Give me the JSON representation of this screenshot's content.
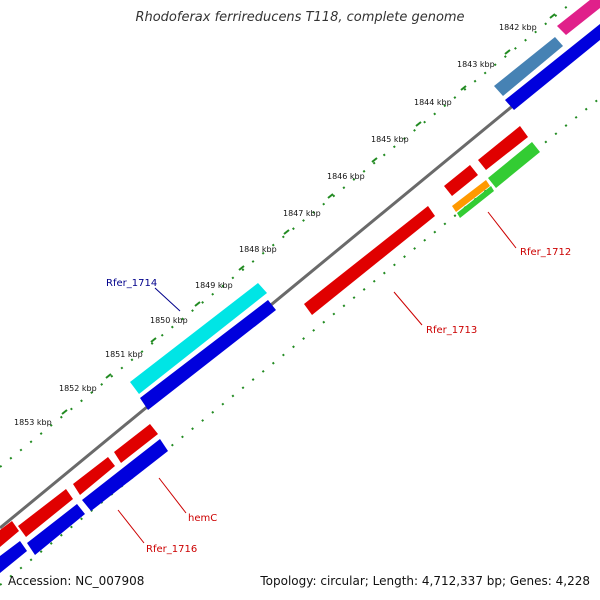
{
  "title": "Rhodoferax ferrireducens T118, complete genome",
  "footer": {
    "accession": "Accession: NC_007908",
    "summary": "Topology: circular; Length: 4,712,337 bp; Genes: 4,228"
  },
  "kbp_labels": [
    "1842 kbp",
    "1843 kbp",
    "1844 kbp",
    "1845 kbp",
    "1846 kbp",
    "1847 kbp",
    "1848 kbp",
    "1849 kbp",
    "1850 kbp",
    "1851 kbp",
    "1852 kbp",
    "1853 kbp"
  ],
  "gene_labels": [
    {
      "text": "Rfer_1714",
      "color": "#00008b"
    },
    {
      "text": "Rfer_1712",
      "color": "#cc0000"
    },
    {
      "text": "Rfer_1713",
      "color": "#cc0000"
    },
    {
      "text": "hemC",
      "color": "#cc0000"
    },
    {
      "text": "Rfer_1716",
      "color": "#cc0000"
    }
  ],
  "colors": {
    "backbone": "#808080",
    "cds_forward": "#e00000",
    "cds_reverse": "#0000dd",
    "gene_highlight": "#00e5e5",
    "steelblue": "#4682b4",
    "green": "#33cc33",
    "orange": "#ff9900",
    "magenta": "#e0208a",
    "tick": "#228b22"
  }
}
